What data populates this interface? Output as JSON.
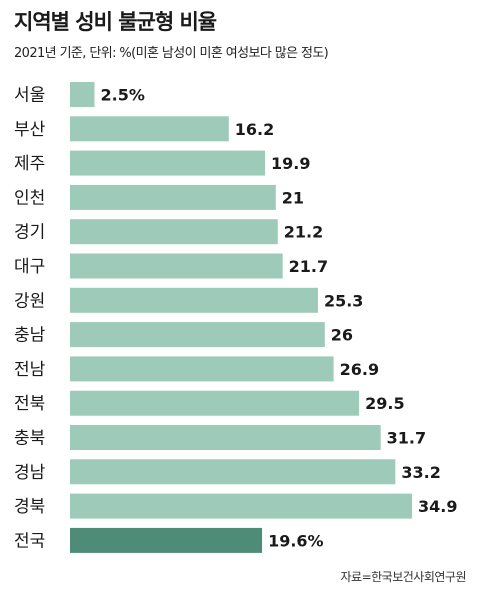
{
  "chart_data": {
    "type": "bar",
    "orientation": "horizontal",
    "title": "지역별 성비 불균형 비율",
    "subtitle": "2021년 기준, 단위: %(미혼 남성이 미혼 여성보다 많은 정도)",
    "categories": [
      "서울",
      "부산",
      "제주",
      "인천",
      "경기",
      "대구",
      "강원",
      "충남",
      "전남",
      "전북",
      "충북",
      "경남",
      "경북",
      "전국"
    ],
    "values": [
      2.5,
      16.2,
      19.9,
      21,
      21.2,
      21.7,
      25.3,
      26,
      26.9,
      29.5,
      31.7,
      33.2,
      34.9,
      19.6
    ],
    "value_labels": [
      "2.5%",
      "16.2",
      "19.9",
      "21",
      "21.2",
      "21.7",
      "25.3",
      "26",
      "26.9",
      "29.5",
      "31.7",
      "33.2",
      "34.9",
      "19.6%"
    ],
    "bar_color": "#9ecab9",
    "highlight_color": "#4e8c77",
    "highlight_index": 13,
    "source": "자료=한국보건사회연구원"
  }
}
